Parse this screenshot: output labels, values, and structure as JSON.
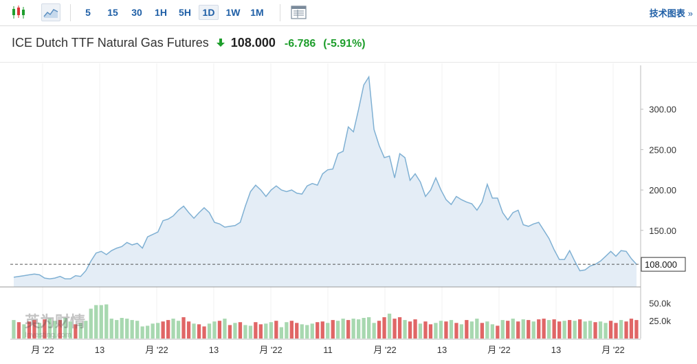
{
  "toolbar": {
    "timeframes": [
      "5",
      "15",
      "30",
      "1H",
      "5H",
      "1D",
      "1W",
      "1M"
    ],
    "selected_timeframe": "1D",
    "tech_chart_label": "技术图表",
    "tech_chart_chevron": "»"
  },
  "header": {
    "instrument": "ICE Dutch TTF Natural Gas Futures",
    "price": "108.000",
    "change": "-6.786",
    "change_pct": "(-5.91%)"
  },
  "colors": {
    "line": "#7fb0d3",
    "area": "#e4edf6",
    "vol_up": "#a8d8b0",
    "vol_down": "#e06666",
    "positive": "#1e9e2c",
    "link": "#1f5fa6"
  },
  "watermark": "英为财情 Investing.com",
  "chart_data": {
    "type": "area",
    "price_scale": {
      "min": 80,
      "max": 350,
      "ticks": [
        "300.00",
        "250.00",
        "200.00",
        "150.00"
      ]
    },
    "current_value": 108.0,
    "current_label": "108.000",
    "x_labels": [
      "月 '22",
      "13",
      "月 '22",
      "13",
      "月 '22",
      "11",
      "月 '22",
      "13",
      "月 '22",
      "13",
      "月 '22"
    ],
    "price": [
      92,
      93,
      94,
      95,
      96,
      95,
      91,
      90,
      91,
      93,
      90,
      90,
      94,
      93,
      100,
      112,
      122,
      124,
      120,
      125,
      128,
      130,
      135,
      132,
      134,
      128,
      142,
      145,
      148,
      162,
      164,
      168,
      175,
      180,
      172,
      165,
      172,
      178,
      172,
      160,
      158,
      154,
      155,
      156,
      160,
      180,
      198,
      206,
      200,
      192,
      200,
      205,
      200,
      198,
      200,
      196,
      195,
      205,
      208,
      206,
      220,
      225,
      226,
      245,
      248,
      278,
      272,
      300,
      330,
      340,
      275,
      255,
      240,
      242,
      215,
      245,
      240,
      212,
      220,
      210,
      192,
      200,
      215,
      200,
      188,
      182,
      192,
      188,
      185,
      183,
      175,
      185,
      207,
      190,
      190,
      172,
      163,
      172,
      175,
      157,
      155,
      158,
      160,
      150,
      140,
      126,
      114,
      114,
      125,
      112,
      100,
      101,
      106,
      108,
      112,
      118,
      124,
      118,
      125,
      124,
      115,
      108
    ],
    "volume": [
      26,
      23,
      20,
      24,
      26,
      22,
      27,
      28,
      25,
      26,
      29,
      24,
      20,
      22,
      25,
      42,
      47,
      47,
      48,
      28,
      26,
      29,
      28,
      26,
      25,
      17,
      18,
      21,
      22,
      24,
      26,
      28,
      25,
      30,
      24,
      21,
      20,
      17,
      21,
      24,
      25,
      28,
      19,
      22,
      23,
      19,
      18,
      23,
      20,
      21,
      23,
      25,
      16,
      23,
      25,
      22,
      20,
      19,
      21,
      23,
      24,
      22,
      26,
      25,
      28,
      26,
      28,
      27,
      29,
      30,
      22,
      25,
      30,
      35,
      28,
      30,
      26,
      24,
      27,
      21,
      24,
      20,
      22,
      25,
      24,
      26,
      22,
      20,
      26,
      24,
      28,
      22,
      24,
      20,
      18,
      26,
      25,
      28,
      24,
      27,
      26,
      24,
      27,
      28,
      26,
      27,
      24,
      25,
      26,
      25,
      27,
      24,
      25,
      23,
      24,
      22,
      25,
      22,
      26,
      24,
      28,
      26
    ],
    "volume_up": [
      true,
      false,
      true,
      false,
      false,
      true,
      false,
      true,
      true,
      false,
      true,
      true,
      false,
      true,
      true,
      true,
      true,
      true,
      true,
      true,
      true,
      true,
      true,
      true,
      true,
      true,
      true,
      true,
      true,
      false,
      false,
      true,
      true,
      false,
      false,
      true,
      false,
      false,
      true,
      true,
      false,
      true,
      false,
      true,
      false,
      true,
      true,
      false,
      false,
      true,
      true,
      false,
      true,
      true,
      false,
      false,
      true,
      true,
      true,
      false,
      false,
      true,
      false,
      true,
      true,
      false,
      true,
      true,
      true,
      true,
      true,
      false,
      false,
      true,
      false,
      false,
      true,
      false,
      false,
      true,
      false,
      false,
      true,
      true,
      false,
      true,
      false,
      true,
      false,
      true,
      true,
      false,
      true,
      true,
      false,
      true,
      false,
      true,
      false,
      true,
      false,
      true,
      false,
      false,
      true,
      false,
      false,
      true,
      false,
      true,
      false,
      true,
      true,
      false,
      true,
      true,
      false,
      false,
      true,
      false,
      false,
      false
    ],
    "volume_scale": {
      "max": 60,
      "ticks": [
        "50.0k",
        "25.0k"
      ]
    }
  }
}
